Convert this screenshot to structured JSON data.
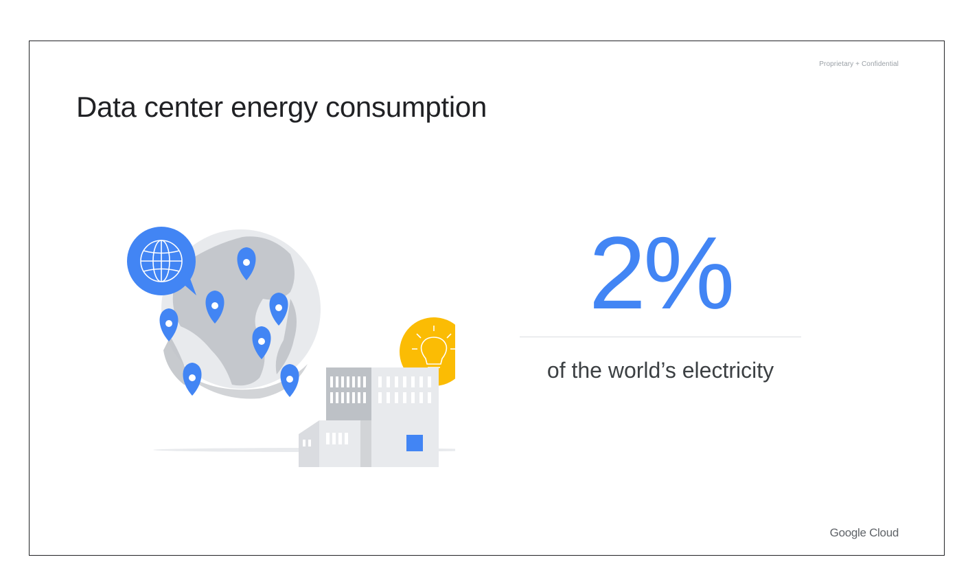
{
  "slide": {
    "confidential_label": "Proprietary + Confidential",
    "title": "Data center energy consumption",
    "stat": {
      "value": "2%",
      "caption": "of the world’s electricity"
    },
    "brand": "Google Cloud"
  },
  "illustration": {
    "icons": [
      "globe-icon",
      "map-pin-icon",
      "lightbulb-icon",
      "building-icon"
    ]
  },
  "colors": {
    "accent_blue": "#4285f4",
    "accent_yellow": "#fbbc04",
    "text_dark": "#202124",
    "text_gray": "#3c4043",
    "divider": "#dadce0"
  }
}
